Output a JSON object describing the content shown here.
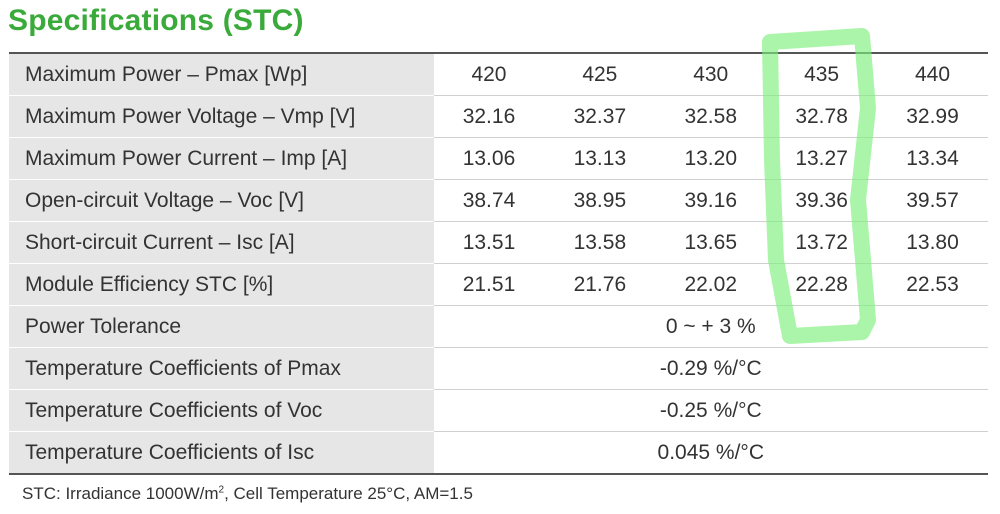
{
  "title": "Specifications (STC)",
  "rows": [
    {
      "label": "Maximum Power – Pmax [Wp]",
      "values": [
        "420",
        "425",
        "430",
        "435",
        "440"
      ]
    },
    {
      "label": "Maximum Power Voltage – Vmp [V]",
      "values": [
        "32.16",
        "32.37",
        "32.58",
        "32.78",
        "32.99"
      ]
    },
    {
      "label": "Maximum Power Current – Imp [A]",
      "values": [
        "13.06",
        "13.13",
        "13.20",
        "13.27",
        "13.34"
      ]
    },
    {
      "label": "Open-circuit Voltage – Voc [V]",
      "values": [
        "38.74",
        "38.95",
        "39.16",
        "39.36",
        "39.57"
      ]
    },
    {
      "label": "Short-circuit Current – Isc [A]",
      "values": [
        "13.51",
        "13.58",
        "13.65",
        "13.72",
        "13.80"
      ]
    },
    {
      "label": "Module Efficiency STC [%]",
      "values": [
        "21.51",
        "21.76",
        "22.02",
        "22.28",
        "22.53"
      ]
    }
  ],
  "span_rows": [
    {
      "label": "Power Tolerance",
      "value": "0 ~ + 3 %"
    },
    {
      "label": "Temperature Coefficients of Pmax",
      "value": "-0.29 %/°C"
    },
    {
      "label": "Temperature Coefficients of Voc",
      "value": "-0.25 %/°C"
    },
    {
      "label": "Temperature Coefficients of Isc",
      "value": "0.045 %/°C"
    }
  ],
  "footnote": {
    "prefix": "STC: Irradiance 1000W/m",
    "superscript": "2",
    "suffix": ", Cell Temperature 25°C, AM=1.5"
  },
  "colors": {
    "title": "#3aaa3a",
    "label_background": "#e6e6e6",
    "highlight_marker": "#7cf07c"
  }
}
